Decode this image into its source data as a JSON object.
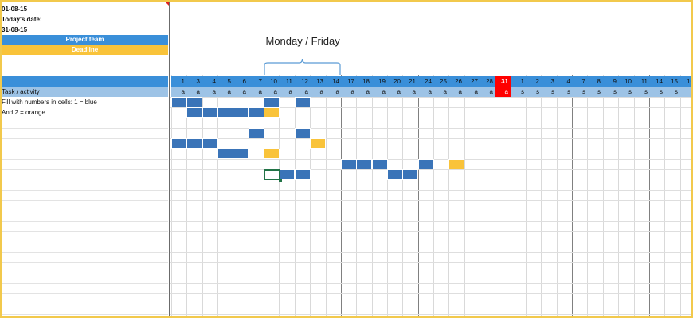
{
  "info": {
    "start_date": "01-08-15",
    "today_label": "Today's date:",
    "end_date": "31-08-15"
  },
  "bands": {
    "project_team": "Project team",
    "deadline": "Deadline"
  },
  "colors": {
    "accent_blue": "#3a8fd9",
    "light_blue": "#9dc3e6",
    "task_blue": "#3a74b8",
    "task_orange": "#f9c33a",
    "today_red": "#ff0000",
    "frame_border": "#f2c94c"
  },
  "annotation": "Monday / Friday",
  "table": {
    "task_header": "Task / activity",
    "rows": [
      "Fill with numbers in cells: 1 = blue",
      "And 2 = orange"
    ]
  },
  "days": [
    "1",
    "3",
    "4",
    "5",
    "6",
    "7",
    "10",
    "11",
    "12",
    "13",
    "14",
    "17",
    "18",
    "19",
    "20",
    "21",
    "24",
    "25",
    "26",
    "27",
    "28",
    "31",
    "1",
    "2",
    "3",
    "4",
    "7",
    "8",
    "9",
    "10",
    "11",
    "14",
    "15",
    "16"
  ],
  "codes": [
    "a",
    "a",
    "a",
    "a",
    "a",
    "a",
    "a",
    "a",
    "a",
    "a",
    "a",
    "a",
    "a",
    "a",
    "a",
    "a",
    "a",
    "a",
    "a",
    "a",
    "a",
    "a",
    "s",
    "s",
    "s",
    "s",
    "s",
    "s",
    "s",
    "s",
    "s",
    "s",
    "s",
    "s"
  ],
  "highlight_column": 21,
  "bars": [
    {
      "row": 0,
      "col": 0,
      "color": "blue"
    },
    {
      "row": 0,
      "col": 1,
      "color": "blue"
    },
    {
      "row": 0,
      "col": 6,
      "color": "blue"
    },
    {
      "row": 0,
      "col": 8,
      "color": "blue"
    },
    {
      "row": 1,
      "col": 1,
      "color": "blue"
    },
    {
      "row": 1,
      "col": 2,
      "color": "blue"
    },
    {
      "row": 1,
      "col": 3,
      "color": "blue"
    },
    {
      "row": 1,
      "col": 4,
      "color": "blue"
    },
    {
      "row": 1,
      "col": 5,
      "color": "blue"
    },
    {
      "row": 1,
      "col": 6,
      "color": "orange"
    },
    {
      "row": 3,
      "col": 5,
      "color": "blue"
    },
    {
      "row": 3,
      "col": 8,
      "color": "blue"
    },
    {
      "row": 4,
      "col": 0,
      "color": "blue"
    },
    {
      "row": 4,
      "col": 1,
      "color": "blue"
    },
    {
      "row": 4,
      "col": 2,
      "color": "blue"
    },
    {
      "row": 4,
      "col": 9,
      "color": "orange"
    },
    {
      "row": 5,
      "col": 3,
      "color": "blue"
    },
    {
      "row": 5,
      "col": 4,
      "color": "blue"
    },
    {
      "row": 5,
      "col": 6,
      "color": "orange"
    },
    {
      "row": 6,
      "col": 11,
      "color": "blue"
    },
    {
      "row": 6,
      "col": 12,
      "color": "blue"
    },
    {
      "row": 6,
      "col": 13,
      "color": "blue"
    },
    {
      "row": 6,
      "col": 16,
      "color": "blue"
    },
    {
      "row": 6,
      "col": 18,
      "color": "orange"
    },
    {
      "row": 7,
      "col": 7,
      "color": "blue"
    },
    {
      "row": 7,
      "col": 8,
      "color": "blue"
    },
    {
      "row": 7,
      "col": 14,
      "color": "blue"
    },
    {
      "row": 7,
      "col": 15,
      "color": "blue"
    }
  ],
  "selected_cell": {
    "row": 7,
    "col": 6
  },
  "week_boundaries": [
    6,
    11,
    16,
    21,
    26,
    31
  ]
}
